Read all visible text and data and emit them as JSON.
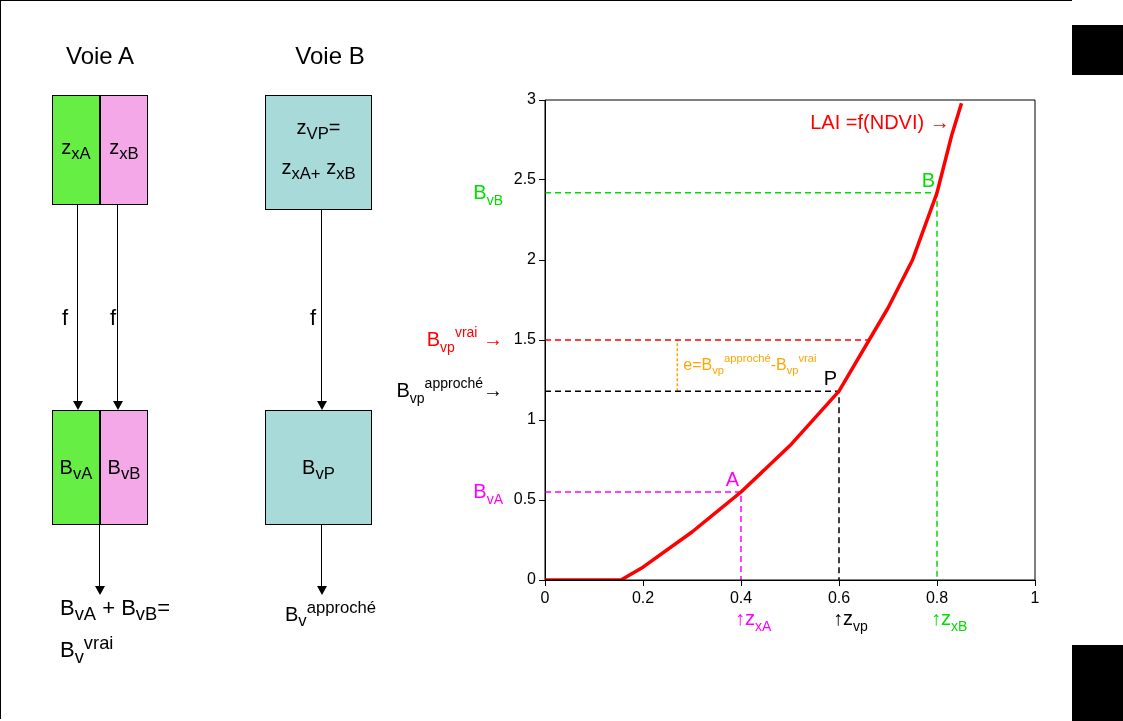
{
  "chart_data": [
    {
      "type": "other",
      "annotations": [
        "Voie A",
        "Voie B",
        "z$_{xA}$",
        "z$_{xB}$",
        "z$_{VP}$=",
        "z$_{xA+}$ z$_{xB}$",
        "f",
        "f",
        "f",
        "B$_{vA}$",
        "B$_{vB}$",
        "B$_{vP}$",
        "B$_{vA}$ + B$_{vB}$=",
        "B$_{v}$$^{vrai}$",
        "B$_{v}$$^{approché}$"
      ]
    },
    {
      "type": "line",
      "xlim": [
        0,
        1
      ],
      "xticks": [
        0,
        0.2,
        0.4,
        0.6,
        0.8,
        1
      ],
      "ylim": [
        0,
        3
      ],
      "yticks": [
        0,
        0.5,
        1,
        1.5,
        2,
        2.5,
        3
      ],
      "grid": false,
      "legend": false,
      "marker": "none",
      "series": [
        {
          "color": "#ff0000",
          "line_style": "solid",
          "x": [
            0,
            0.155,
            0.2,
            0.3,
            0.4,
            0.5,
            0.6,
            0.7,
            0.75,
            0.8,
            0.83,
            0.85
          ],
          "values": [
            0,
            0,
            0.08,
            0.3,
            0.55,
            0.84,
            1.18,
            1.7,
            2.0,
            2.42,
            2.78,
            2.98
          ]
        },
        {
          "color": "#00dd00",
          "line_style": "dashed",
          "x": [
            0,
            0.8,
            0.8
          ],
          "values": [
            2.42,
            2.42,
            0
          ]
        },
        {
          "color": "#ff0000",
          "line_style": "dashed",
          "x": [
            0,
            0.66
          ],
          "values": [
            1.5,
            1.5
          ]
        },
        {
          "color": "#000000",
          "line_style": "dashed",
          "x": [
            0,
            0.6,
            0.6
          ],
          "values": [
            1.18,
            1.18,
            0
          ]
        },
        {
          "color": "#ff00ff",
          "line_style": "dashed",
          "x": [
            0,
            0.4,
            0.4
          ],
          "values": [
            0.55,
            0.55,
            0
          ]
        },
        {
          "color": "#ffa500",
          "line_style": "dotted",
          "x": [
            0.27,
            0.27
          ],
          "values": [
            1.18,
            1.5
          ]
        }
      ],
      "annotations": [
        {
          "text": "LAI =f(NDVI) →",
          "x": 0.83,
          "y": 2.78
        },
        {
          "text": "A",
          "x": 0.4,
          "y": 0.55
        },
        {
          "text": "P",
          "x": 0.6,
          "y": 1.18
        },
        {
          "text": "B",
          "x": 0.8,
          "y": 2.42
        },
        {
          "text": "B$_{vB}$",
          "x": 0,
          "y": 2.42
        },
        {
          "text": "B$_{vp}$$^{vrai}$ →",
          "x": 0,
          "y": 1.5
        },
        {
          "text": "B$_{vp}$$^{approché}$→",
          "x": 0,
          "y": 1.18
        },
        {
          "text": "B$_{vA}$",
          "x": 0,
          "y": 0.55
        },
        {
          "text": "e=B$_{vp}$$^{approché}$-B$_{vp}$$^{vrai}$",
          "x": 0.27,
          "y": 1.34
        },
        {
          "text": "↑z$_{xA}$",
          "x": 0.4,
          "y": 0
        },
        {
          "text": "↑z$_{vp}$",
          "x": 0.6,
          "y": 0
        },
        {
          "text": "↑z$_{xB}$",
          "x": 0.8,
          "y": 0
        }
      ]
    }
  ]
}
